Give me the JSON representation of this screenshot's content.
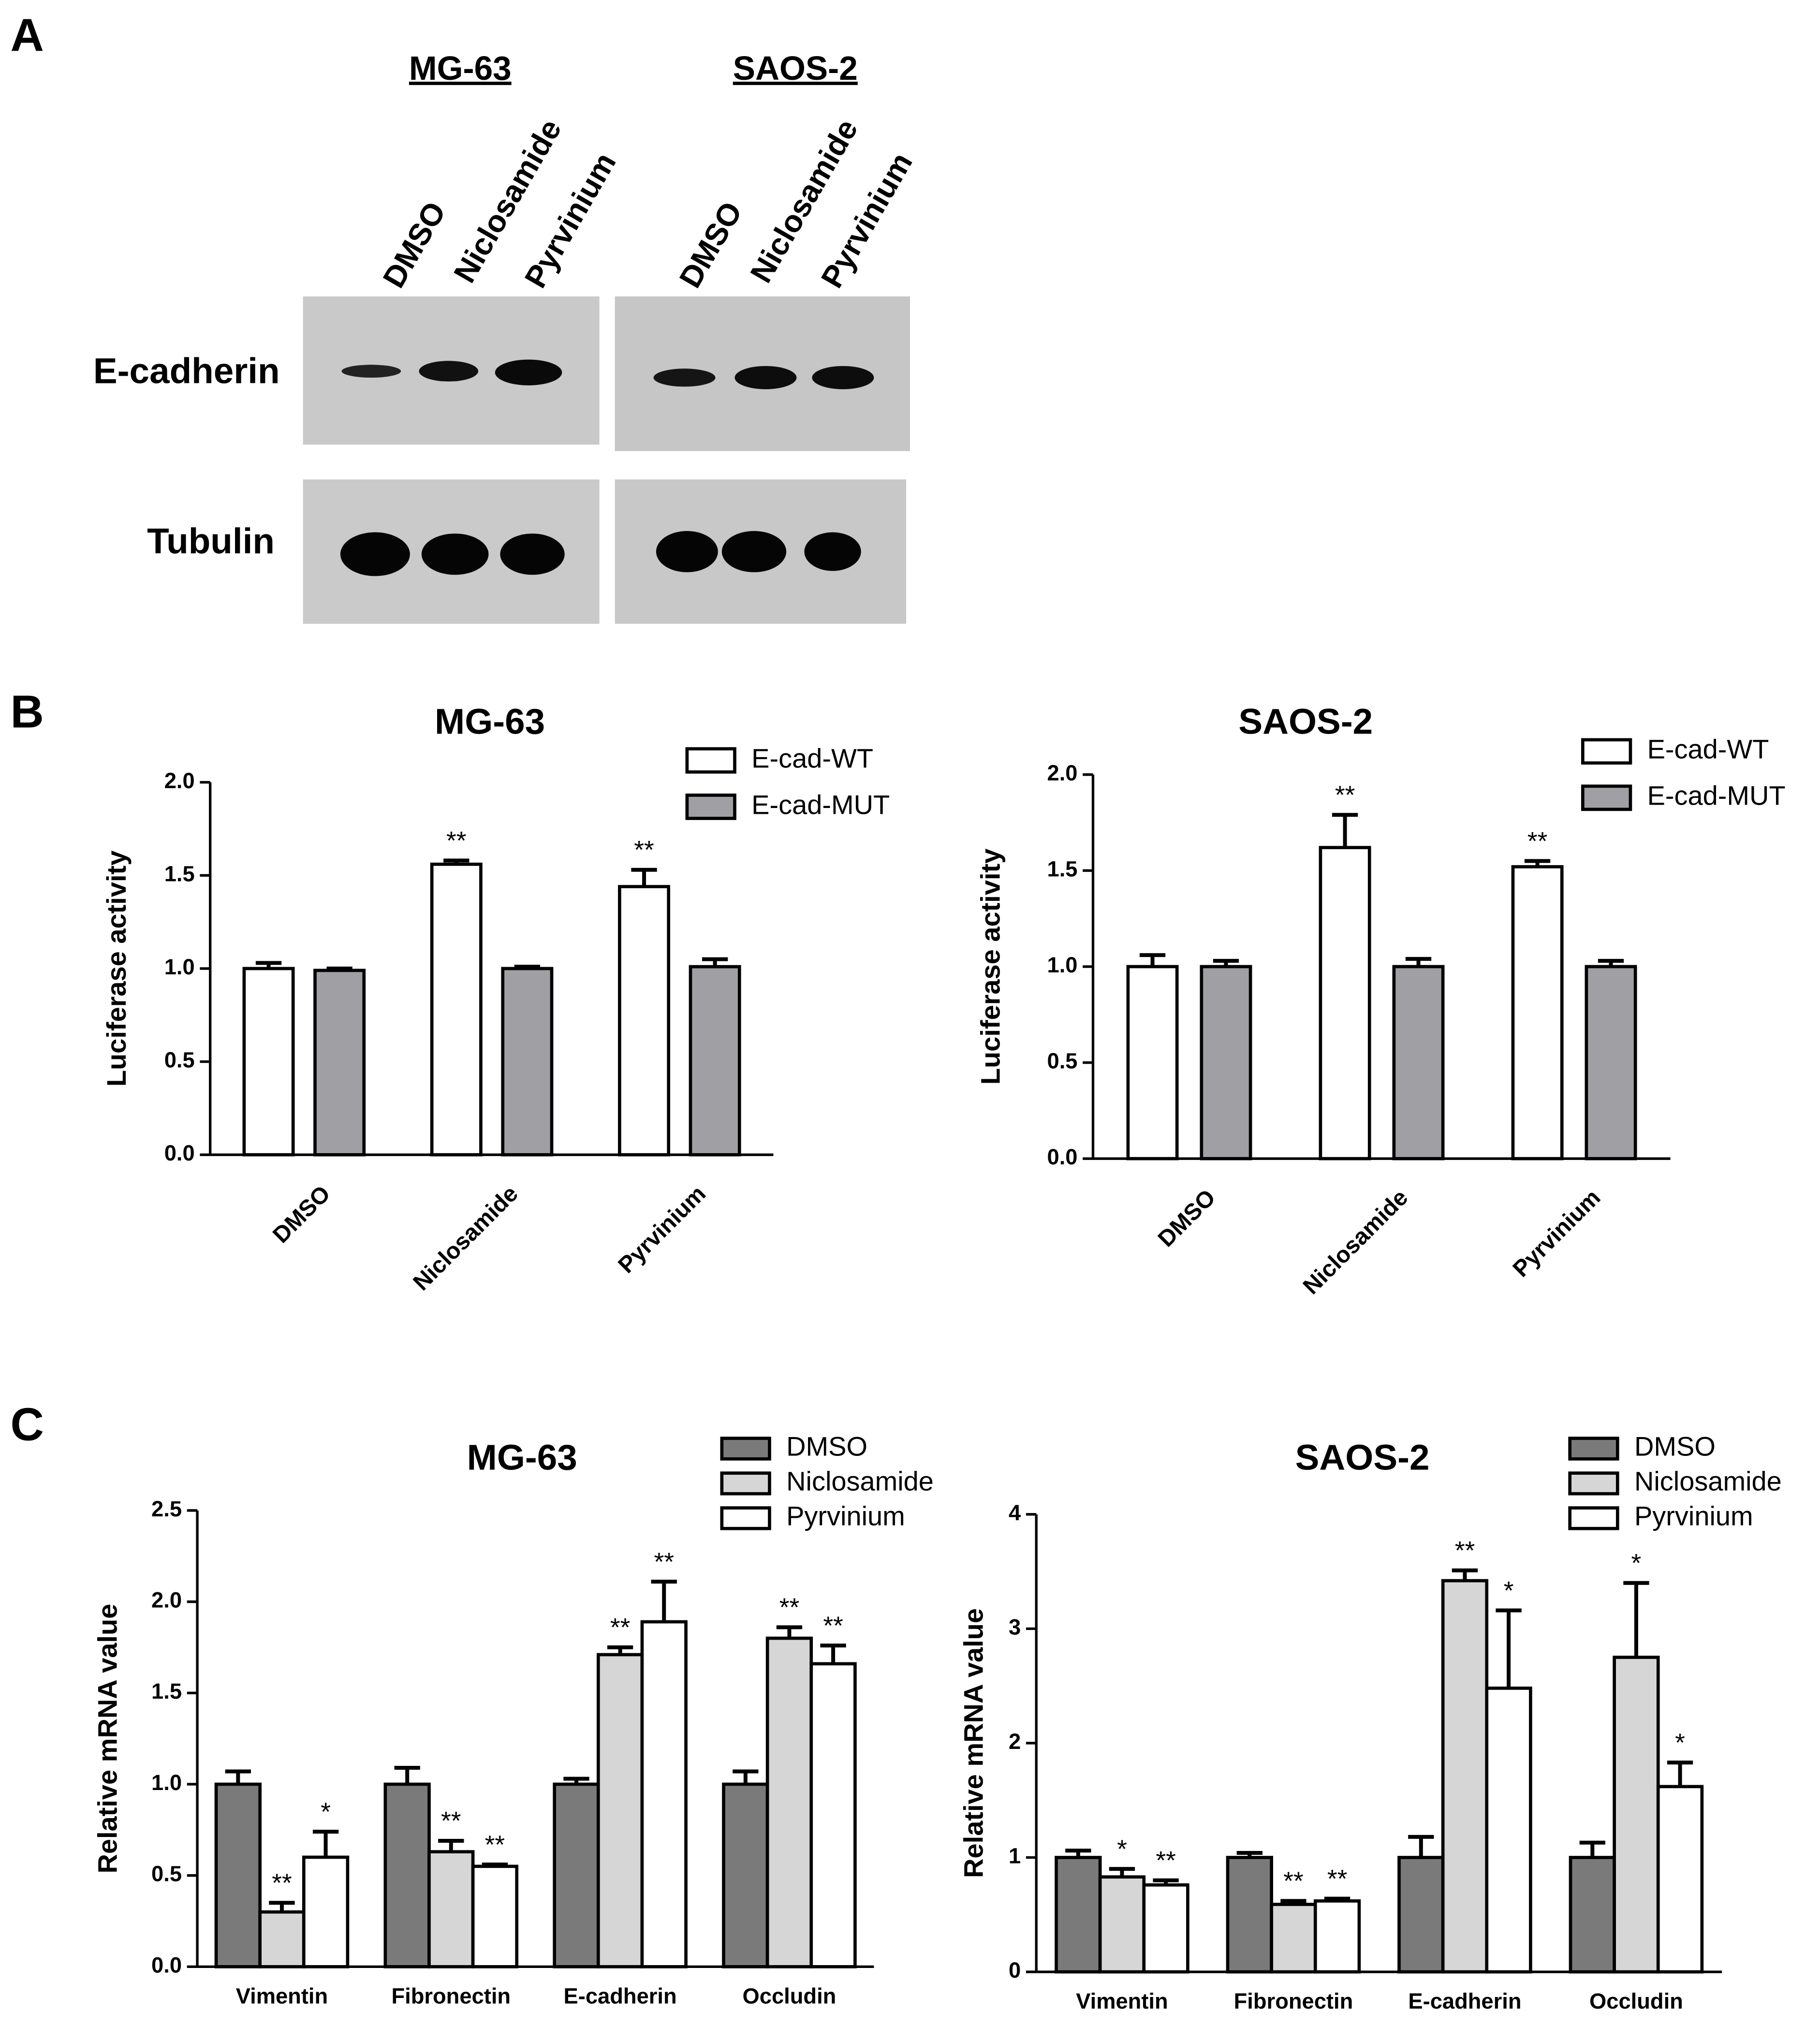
{
  "panel_labels": [
    "A",
    "B",
    "C"
  ],
  "panel_a": {
    "blots": [
      {
        "title": "MG-63",
        "lanes": [
          "DMSO",
          "Niclosamide",
          "Pyrvinium"
        ]
      },
      {
        "title": "SAOS-2",
        "lanes": [
          "DMSO",
          "Niclosamide",
          "Pyrvinium"
        ]
      }
    ],
    "proteins": [
      "E-cadherin",
      "Tubulin"
    ]
  },
  "chart_data": [
    {
      "type": "bar",
      "title": "MG-63",
      "ylabel": "Luciferase activity",
      "categories": [
        "DMSO",
        "Niclosamide",
        "Pyrvinium"
      ],
      "ylim": [
        0,
        2
      ],
      "yticks": [
        {
          "value": 0,
          "label": "0.0"
        },
        0.5,
        {
          "value": 1,
          "label": "1.0"
        },
        1.5,
        {
          "value": 2,
          "label": "2.0"
        }
      ],
      "legend": "upper right",
      "series": [
        {
          "name": "E-cad-WT",
          "color": "#ffffff",
          "values": [
            1.0,
            1.56,
            1.44
          ],
          "errors": [
            0.03,
            0.02,
            0.09
          ],
          "annotations": [
            null,
            "**",
            "**"
          ]
        },
        {
          "name": "E-cad-MUT",
          "color": "#a0a0a4",
          "values": [
            0.99,
            1.0,
            1.01
          ],
          "errors": [
            0.01,
            0.01,
            0.04
          ],
          "annotations": [
            null,
            null,
            null
          ]
        }
      ]
    },
    {
      "type": "bar",
      "title": "SAOS-2",
      "ylabel": "Luciferase activity",
      "categories": [
        "DMSO",
        "Niclosamide",
        "Pyrvinium"
      ],
      "ylim": [
        0,
        2
      ],
      "yticks": [
        {
          "value": 0,
          "label": "0.0"
        },
        0.5,
        {
          "value": 1,
          "label": "1.0"
        },
        1.5,
        {
          "value": 2,
          "label": "2.0"
        }
      ],
      "legend": "upper right",
      "series": [
        {
          "name": "E-cad-WT",
          "color": "#ffffff",
          "values": [
            1.0,
            1.62,
            1.52
          ],
          "errors": [
            0.06,
            0.17,
            0.03
          ],
          "annotations": [
            null,
            "**",
            "**"
          ]
        },
        {
          "name": "E-cad-MUT",
          "color": "#a0a0a4",
          "values": [
            1.0,
            1.0,
            1.0
          ],
          "errors": [
            0.03,
            0.04,
            0.03
          ],
          "annotations": [
            null,
            null,
            null
          ]
        }
      ]
    },
    {
      "type": "bar",
      "title": "MG-63",
      "ylabel": "Relative mRNA value",
      "categories": [
        "Vimentin",
        "Fibronectin",
        "E-cadherin",
        "Occludin"
      ],
      "ylim": [
        0,
        2.5
      ],
      "yticks": [
        {
          "value": 0,
          "label": "0.0"
        },
        0.5,
        {
          "value": 1,
          "label": "1.0"
        },
        1.5,
        {
          "value": 2,
          "label": "2.0"
        },
        2.5
      ],
      "legend": "upper right",
      "series": [
        {
          "name": "DMSO",
          "color": "#7a7a7a",
          "values": [
            1.0,
            1.0,
            1.0,
            1.0
          ],
          "errors": [
            0.07,
            0.09,
            0.03,
            0.07
          ],
          "annotations": [
            null,
            null,
            null,
            null
          ]
        },
        {
          "name": "Niclosamide",
          "color": "#d6d6d6",
          "values": [
            0.3,
            0.63,
            1.71,
            1.8
          ],
          "errors": [
            0.05,
            0.06,
            0.04,
            0.06
          ],
          "annotations": [
            "**",
            "**",
            "**",
            "**"
          ]
        },
        {
          "name": "Pyrvinium",
          "color": "#ffffff",
          "values": [
            0.6,
            0.55,
            1.89,
            1.66
          ],
          "errors": [
            0.14,
            0.01,
            0.22,
            0.1
          ],
          "annotations": [
            "*",
            "**",
            "**",
            "**"
          ]
        }
      ]
    },
    {
      "type": "bar",
      "title": "SAOS-2",
      "ylabel": "Relative mRNA value",
      "categories": [
        "Vimentin",
        "Fibronectin",
        "E-cadherin",
        "Occludin"
      ],
      "ylim": [
        0,
        4
      ],
      "yticks": [
        0,
        1,
        2,
        3,
        4
      ],
      "legend": "upper right",
      "series": [
        {
          "name": "DMSO",
          "color": "#7a7a7a",
          "values": [
            1.0,
            1.0,
            1.0,
            1.0
          ],
          "errors": [
            0.06,
            0.04,
            0.18,
            0.13
          ],
          "annotations": [
            null,
            null,
            null,
            null
          ]
        },
        {
          "name": "Niclosamide",
          "color": "#d6d6d6",
          "values": [
            0.83,
            0.59,
            3.42,
            2.75
          ],
          "errors": [
            0.07,
            0.03,
            0.09,
            0.65
          ],
          "annotations": [
            "*",
            "**",
            "**",
            "*"
          ]
        },
        {
          "name": "Pyrvinium",
          "color": "#ffffff",
          "values": [
            0.76,
            0.62,
            2.48,
            1.62
          ],
          "errors": [
            0.04,
            0.02,
            0.68,
            0.21
          ],
          "annotations": [
            "**",
            "**",
            "*",
            "*"
          ]
        }
      ]
    }
  ]
}
